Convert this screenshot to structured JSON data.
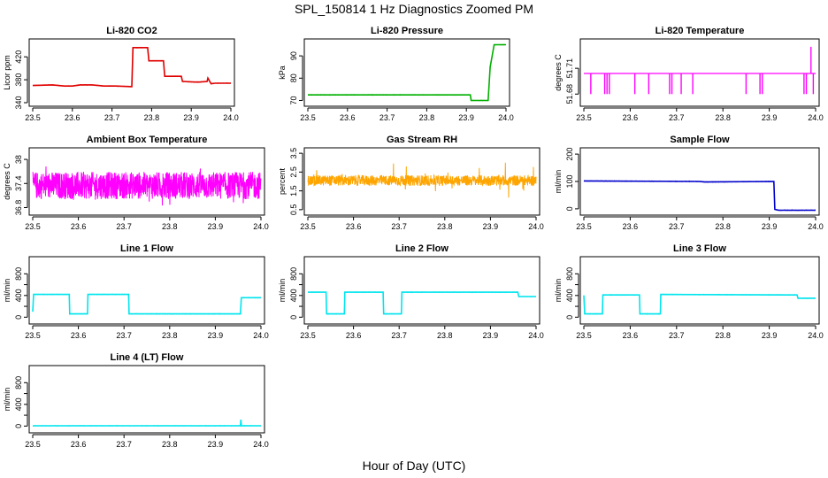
{
  "title": "SPL_150814  1 Hz Diagnostics Zoomed PM",
  "xlabel": "Hour of Day (UTC)",
  "chart_data": [
    {
      "type": "line",
      "title": "Li-820 CO2",
      "ylabel": "Licor ppm",
      "xlim": [
        23.5,
        24.0
      ],
      "ylim": [
        340,
        445
      ],
      "yticks": [
        340,
        380,
        420
      ],
      "xticks": [
        23.5,
        23.6,
        23.7,
        23.8,
        23.9,
        24.0
      ],
      "series": [
        {
          "color": "#e00000",
          "x": [
            23.5,
            23.55,
            23.58,
            23.6,
            23.62,
            23.65,
            23.68,
            23.71,
            23.75,
            23.753,
            23.79,
            23.793,
            23.83,
            23.833,
            23.875,
            23.878,
            23.91,
            23.92,
            23.94,
            23.942,
            23.95,
            23.96,
            23.99,
            24.0
          ],
          "y": [
            370,
            371,
            369,
            369,
            371,
            371,
            369,
            369,
            368,
            436,
            436,
            413,
            413,
            386,
            386,
            377,
            376,
            376,
            377,
            383,
            373,
            374,
            374,
            374
          ]
        }
      ]
    },
    {
      "type": "line",
      "title": "Li-820 Pressure",
      "ylabel": "kPa",
      "xlim": [
        23.5,
        24.0
      ],
      "ylim": [
        69,
        96
      ],
      "yticks": [
        70,
        80,
        90
      ],
      "xticks": [
        23.5,
        23.6,
        23.7,
        23.8,
        23.9,
        24.0
      ],
      "series": [
        {
          "color": "#00b000",
          "x": [
            23.5,
            23.6,
            23.7,
            23.8,
            23.91,
            23.912,
            23.955,
            23.96,
            23.97,
            23.972,
            24.0
          ],
          "y": [
            72.5,
            72.5,
            72.5,
            72.5,
            72.5,
            70,
            70,
            85,
            95,
            95,
            95
          ]
        }
      ]
    },
    {
      "type": "line",
      "title": "Li-820 Temperature",
      "ylabel": "degrees C",
      "xlim": [
        23.5,
        24.0
      ],
      "ylim": [
        51.67,
        51.74
      ],
      "yticks": [
        51.68,
        51.71
      ],
      "yticklabels": [
        "51.68",
        "51.71"
      ],
      "baseline": 51.704,
      "low": 51.68,
      "high": 51.735,
      "series": [
        {
          "color": "#ff00ff",
          "dips": [
            23.515,
            23.545,
            23.55,
            23.555,
            23.61,
            23.64,
            23.685,
            23.69,
            23.71,
            23.735,
            23.85,
            23.88,
            23.885,
            23.975,
            23.98,
            23.995
          ],
          "spikes": [
            23.99
          ]
        }
      ],
      "xticks": [
        23.5,
        23.6,
        23.7,
        23.8,
        23.9,
        24.0
      ]
    },
    {
      "type": "line",
      "title": "Ambient Box Temperature",
      "ylabel": "degrees C",
      "xlim": [
        23.5,
        24.0
      ],
      "ylim": [
        36.7,
        38.2
      ],
      "yticks": [
        36.8,
        37.4,
        38.0
      ],
      "noise": {
        "center": 37.35,
        "amp": 0.34,
        "spike_amp": 0.55
      },
      "series": [
        {
          "color": "#ff00ff"
        }
      ],
      "xticks": [
        23.5,
        23.6,
        23.7,
        23.8,
        23.9,
        24.0
      ]
    },
    {
      "type": "line",
      "title": "Gas Stream RH",
      "ylabel": "percent",
      "xlim": [
        23.5,
        24.0
      ],
      "ylim": [
        0.4,
        3.6
      ],
      "yticks": [
        0.5,
        1.5,
        2.5,
        3.5
      ],
      "noise": {
        "center": 2.05,
        "amp": 0.28,
        "spike_amp": 1.0
      },
      "series": [
        {
          "color": "#ffa500"
        }
      ],
      "xticks": [
        23.5,
        23.6,
        23.7,
        23.8,
        23.9,
        24.0
      ]
    },
    {
      "type": "line",
      "title": "Sample Flow",
      "ylabel": "ml/min",
      "xlim": [
        23.5,
        24.0
      ],
      "ylim": [
        -10,
        210
      ],
      "yticks": [
        0,
        100,
        200
      ],
      "series": [
        {
          "color": "#0000cc",
          "x": [
            23.5,
            23.75,
            23.76,
            23.91,
            23.912,
            23.92,
            24.0
          ],
          "y": [
            102,
            100,
            98,
            100,
            -2,
            -5,
            -5
          ]
        }
      ],
      "xticks": [
        23.5,
        23.6,
        23.7,
        23.8,
        23.9,
        24.0
      ]
    },
    {
      "type": "line",
      "title": "Line 1 Flow",
      "ylabel": "ml/min",
      "xlim": [
        23.5,
        24.0
      ],
      "ylim": [
        -60,
        1050
      ],
      "yticks": [
        0,
        200,
        400,
        600,
        800
      ],
      "yticklabels": [
        "0",
        "",
        "400",
        "",
        "800"
      ],
      "series": [
        {
          "color": "#00e5ee",
          "x": [
            23.5,
            23.502,
            23.58,
            23.581,
            23.62,
            23.621,
            23.71,
            23.711,
            23.955,
            23.957,
            24.0
          ],
          "y": [
            100,
            420,
            420,
            60,
            60,
            420,
            420,
            60,
            60,
            360,
            360
          ]
        }
      ],
      "xticks": [
        23.5,
        23.6,
        23.7,
        23.8,
        23.9,
        24.0
      ]
    },
    {
      "type": "line",
      "title": "Line 2 Flow",
      "ylabel": "ml/min",
      "xlim": [
        23.5,
        24.0
      ],
      "ylim": [
        -60,
        1050
      ],
      "yticks": [
        0,
        200,
        400,
        600,
        800
      ],
      "yticklabels": [
        "0",
        "",
        "400",
        "",
        "800"
      ],
      "series": [
        {
          "color": "#00e5ee",
          "x": [
            23.5,
            23.54,
            23.541,
            23.58,
            23.581,
            23.665,
            23.666,
            23.705,
            23.706,
            23.96,
            23.962,
            24.0
          ],
          "y": [
            460,
            460,
            60,
            60,
            460,
            460,
            60,
            60,
            460,
            460,
            380,
            380
          ]
        }
      ],
      "xticks": [
        23.5,
        23.6,
        23.7,
        23.8,
        23.9,
        24.0
      ]
    },
    {
      "type": "line",
      "title": "Line 3 Flow",
      "ylabel": "ml/min",
      "xlim": [
        23.5,
        24.0
      ],
      "ylim": [
        -60,
        1050
      ],
      "yticks": [
        0,
        200,
        400,
        600,
        800
      ],
      "yticklabels": [
        "0",
        "",
        "400",
        "",
        "800"
      ],
      "series": [
        {
          "color": "#00e5ee",
          "x": [
            23.5,
            23.502,
            23.54,
            23.541,
            23.62,
            23.621,
            23.665,
            23.666,
            23.96,
            23.962,
            24.0
          ],
          "y": [
            400,
            60,
            60,
            410,
            410,
            60,
            60,
            420,
            410,
            350,
            350
          ]
        }
      ],
      "xticks": [
        23.5,
        23.6,
        23.7,
        23.8,
        23.9,
        24.0
      ]
    },
    {
      "type": "line",
      "title": "Line 4 (LT) Flow",
      "ylabel": "ml/min",
      "xlim": [
        23.5,
        24.0
      ],
      "ylim": [
        -60,
        1050
      ],
      "yticks": [
        0,
        200,
        400,
        600,
        800
      ],
      "yticklabels": [
        "0",
        "",
        "400",
        "",
        "800"
      ],
      "series": [
        {
          "color": "#00e5ee",
          "x": [
            23.5,
            23.955,
            23.956,
            23.957,
            23.958,
            24.0
          ],
          "y": [
            5,
            5,
            120,
            5,
            5,
            5
          ]
        }
      ],
      "xticks": [
        23.5,
        23.6,
        23.7,
        23.8,
        23.9,
        24.0
      ]
    }
  ]
}
